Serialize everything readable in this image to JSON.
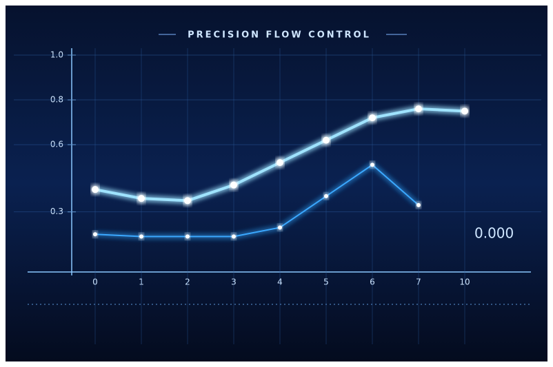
{
  "chart_data": {
    "type": "line",
    "title": "PRECISION FLOW CONTROL",
    "categories": [
      "0",
      "1",
      "2",
      "3",
      "4",
      "5",
      "6",
      "7",
      "10"
    ],
    "series": [
      {
        "color": "#9fe3ff",
        "values": [
          0.4,
          0.36,
          0.35,
          0.42,
          0.52,
          0.62,
          0.72,
          0.76,
          0.75
        ]
      },
      {
        "color": "#3aa8ff",
        "values": [
          0.2,
          0.19,
          0.19,
          0.19,
          0.23,
          0.37,
          0.51,
          0.33,
          null
        ]
      }
    ],
    "ylim": [
      0.05,
      1.0
    ],
    "yticks": [
      {
        "value": 1,
        "label": "1.0"
      },
      {
        "value": 0.8,
        "label": "0.8"
      },
      {
        "value": 0.6,
        "label": "0.6"
      },
      {
        "value": 0.3,
        "label": "0.3"
      }
    ],
    "annotation": "0.000",
    "grid": true
  }
}
